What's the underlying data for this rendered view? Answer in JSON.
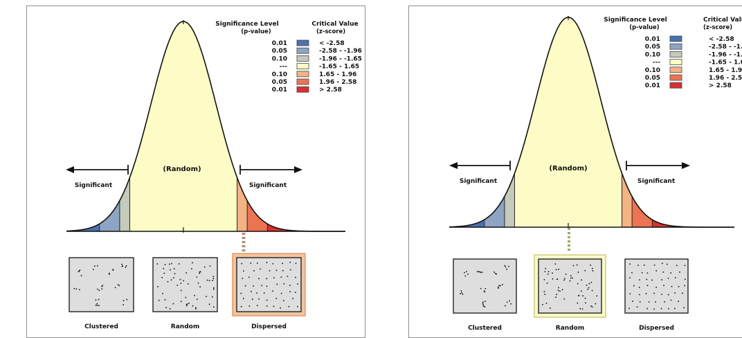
{
  "legend": {
    "header_left_line1": "Significance Level",
    "header_left_line2": "(p-value)",
    "header_right_line1": "Critical Value",
    "header_right_line2": "(z-score)",
    "rows": [
      {
        "p": "0.01",
        "z": "< -2.58",
        "color": "#4a72b0"
      },
      {
        "p": "0.05",
        "z": "-2.58 - -1.96",
        "color": "#8ea4c4"
      },
      {
        "p": "0.10",
        "z": "-1.96 - -1.65",
        "color": "#c4cbbb"
      },
      {
        "p": "---",
        "z": "-1.65 - 1.65",
        "color": "#fefcc6"
      },
      {
        "p": "0.10",
        "z": "1.65 - 1.96",
        "color": "#f4b383"
      },
      {
        "p": "0.05",
        "z": "1.96 - 2.58",
        "color": "#ec7453"
      },
      {
        "p": "0.01",
        "z": "> 2.58",
        "color": "#d7312f"
      }
    ]
  },
  "curve": {
    "center_label": "(Random)",
    "left_label": "Significant",
    "right_label": "Significant"
  },
  "panels": [
    {
      "highlighted": "Dispersed",
      "highlight_fill": "#f2c49e",
      "highlight_border": "#e29a69",
      "samples": [
        {
          "key": "Clustered",
          "label": "Clustered"
        },
        {
          "key": "Random",
          "label": "Random"
        },
        {
          "key": "Dispersed",
          "label": "Dispersed"
        }
      ]
    },
    {
      "highlighted": "Random",
      "highlight_fill": "#fcfac8",
      "highlight_border": "#cfcc7a",
      "samples": [
        {
          "key": "Clustered",
          "label": "Clustered"
        },
        {
          "key": "Random",
          "label": "Random"
        },
        {
          "key": "Dispersed",
          "label": "Dispersed"
        }
      ]
    }
  ]
}
